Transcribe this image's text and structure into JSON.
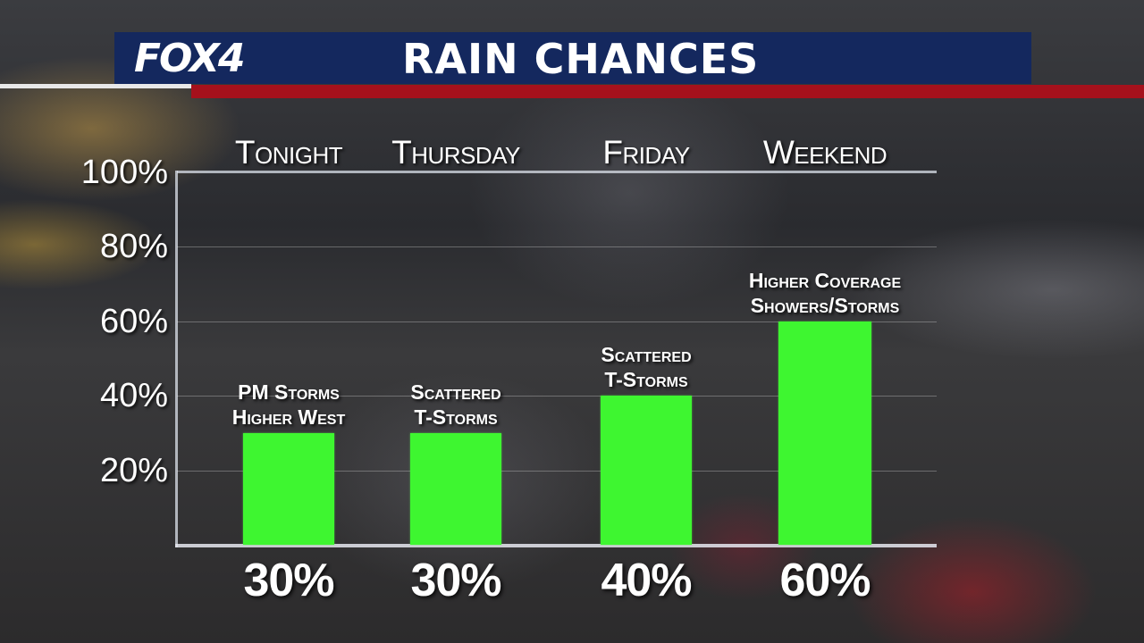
{
  "header": {
    "logo": "FOX4",
    "title": "RAIN CHANCES",
    "bar_color": "#14285e",
    "accent_color": "#a5111c"
  },
  "chart_data": {
    "type": "bar",
    "title": "RAIN CHANCES",
    "categories": [
      "Tonight",
      "Thursday",
      "Friday",
      "Weekend"
    ],
    "values": [
      30,
      30,
      40,
      60
    ],
    "value_labels": [
      "30%",
      "30%",
      "40%",
      "60%"
    ],
    "annotations": [
      [
        "PM Storms",
        "Higher West"
      ],
      [
        "Scattered",
        "T-Storms"
      ],
      [
        "Scattered",
        "T-Storms"
      ],
      [
        "Higher Coverage",
        "Showers/Storms"
      ]
    ],
    "yticks": [
      20,
      40,
      60,
      80,
      100
    ],
    "ytick_labels": [
      "20%",
      "40%",
      "60%",
      "80%",
      "100%"
    ],
    "ylim": [
      0,
      100
    ],
    "grid": true,
    "bar_color": "#3ef630"
  }
}
